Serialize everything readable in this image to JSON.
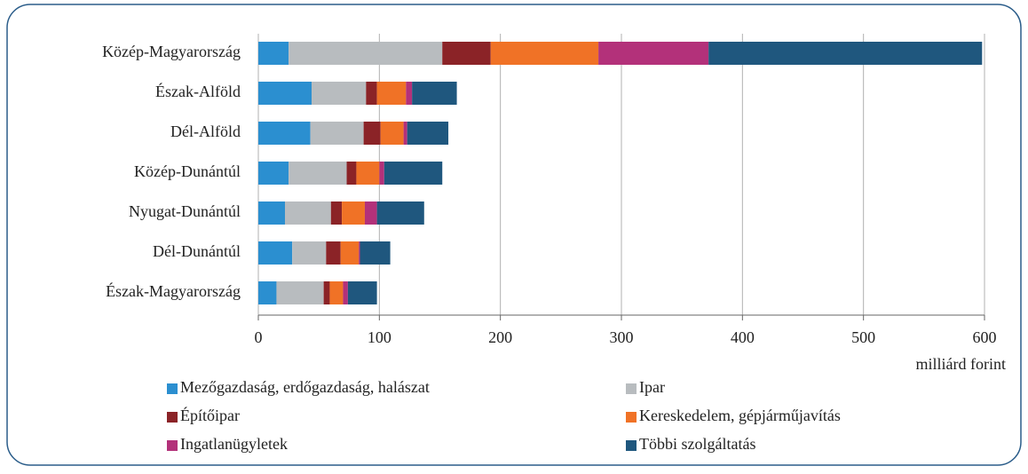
{
  "chart_data": {
    "type": "stacked-barh",
    "categories": [
      "Közép-Magyarország",
      "Észak-Alföld",
      "Dél-Alföld",
      "Közép-Dunántúl",
      "Nyugat-Dunántúl",
      "Dél-Dunántúl",
      "Észak-Magyarország"
    ],
    "series": [
      {
        "name": "Mezőgazdaság, erdőgazdaság, halászat",
        "color": "#2b8fd0",
        "values": [
          25,
          44,
          43,
          25,
          22,
          28,
          15
        ]
      },
      {
        "name": "Ipar",
        "color": "#b8bcbf",
        "values": [
          127,
          45,
          44,
          48,
          38,
          28,
          39
        ]
      },
      {
        "name": "Építőipar",
        "color": "#8b2327",
        "values": [
          40,
          9,
          14,
          8,
          9,
          12,
          5
        ]
      },
      {
        "name": "Kereskedelem, gépjárműjavítás",
        "color": "#f07226",
        "values": [
          89,
          24,
          19,
          19,
          19,
          15,
          11
        ]
      },
      {
        "name": "Ingatlanügyletek",
        "color": "#b3317a",
        "values": [
          91,
          5,
          3,
          4,
          10,
          1,
          4
        ]
      },
      {
        "name": "Többi szolgáltatás",
        "color": "#1f577e",
        "values": [
          226,
          37,
          34,
          48,
          39,
          25,
          24
        ]
      }
    ],
    "xlim": [
      0,
      600
    ],
    "xticks": [
      0,
      100,
      200,
      300,
      400,
      500,
      600
    ],
    "xlabel": "milliárd forint",
    "grid": true
  }
}
